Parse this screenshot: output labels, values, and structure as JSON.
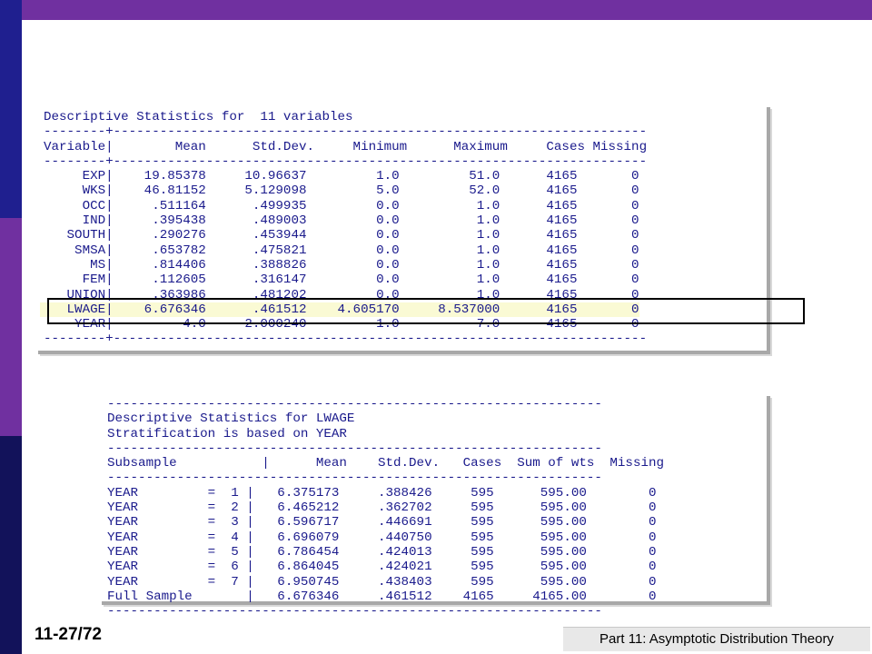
{
  "slide": {
    "number": "11-27/72",
    "footer_title": "Part 11: Asymptotic Distribution Theory",
    "colors": {
      "top_bar": "#7030a0",
      "left_bar_top": "#1f1f8f",
      "left_bar_mid": "#7030a0",
      "left_bar_bottom": "#12125a",
      "console_text": "#1a1a8c"
    }
  },
  "table1": {
    "title": "Descriptive Statistics for  11 variables",
    "rule": "--------+---------------------------------------------------------------------",
    "header": "Variable|        Mean      Std.Dev.     Minimum      Maximum     Cases Missing",
    "rows": [
      "     EXP|    19.85378     10.96637         1.0         51.0      4165       0",
      "     WKS|    46.81152     5.129098         5.0         52.0      4165       0",
      "     OCC|     .511164      .499935         0.0          1.0      4165       0",
      "     IND|     .395438      .489003         0.0          1.0      4165       0",
      "   SOUTH|     .290276      .453944         0.0          1.0      4165       0",
      "    SMSA|     .653782      .475821         0.0          1.0      4165       0",
      "      MS|     .814406      .388826         0.0          1.0      4165       0",
      "     FEM|     .112605      .316147         0.0          1.0      4165       0",
      "   UNION|     .363986      .481202         0.0          1.0      4165       0",
      "   LWAGE|    6.676346      .461512    4.605170     8.537000      4165       0",
      "    YEAR|         4.0     2.000240         1.0          7.0      4165       0"
    ],
    "highlighted_row_index": 9
  },
  "table2": {
    "rule": "----------------------------------------------------------------",
    "title_line1": "Descriptive Statistics for LWAGE",
    "title_line2": "Stratification is based on YEAR",
    "rule2": "----------------------------------------------------------------",
    "header": "Subsample           |      Mean    Std.Dev.   Cases  Sum of wts  Missing",
    "rule3": "----------------------------------------------------------------",
    "rows": [
      "YEAR         =  1 |   6.375173     .388426     595      595.00        0",
      "YEAR         =  2 |   6.465212     .362702     595      595.00        0",
      "YEAR         =  3 |   6.596717     .446691     595      595.00        0",
      "YEAR         =  4 |   6.696079     .440750     595      595.00        0",
      "YEAR         =  5 |   6.786454     .424013     595      595.00        0",
      "YEAR         =  6 |   6.864045     .424021     595      595.00        0",
      "YEAR         =  7 |   6.950745     .438403     595      595.00        0",
      "Full Sample       |   6.676346     .461512    4165     4165.00        0"
    ]
  }
}
